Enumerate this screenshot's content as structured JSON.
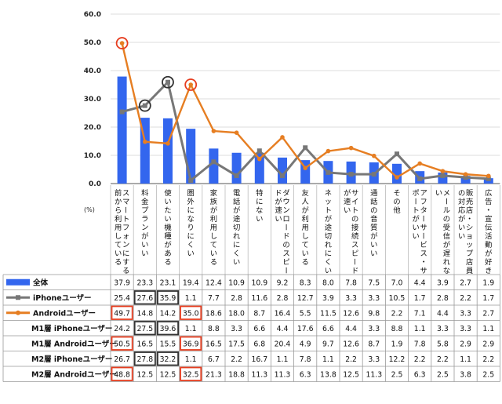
{
  "chart_data": {
    "type": "bar",
    "y_unit": "(%)",
    "ylim": [
      0,
      60
    ],
    "yticks": [
      "0.0",
      "10.0",
      "20.0",
      "30.0",
      "40.0",
      "50.0",
      "60.0"
    ],
    "categories": [
      "スマートフォンにする前から利用している",
      "料金プランがいい",
      "使いたい機種がある",
      "圏外になりにくい",
      "家族が利用している",
      "電話が途切れにくい",
      "特にない",
      "ダウンロードのスピードが速い",
      "友人が利用している",
      "ネットが途切れにくい",
      "サイトの接続スピードが速い",
      "通話の音質がいい",
      "その他",
      "アフターサービス・サポートがいい",
      "メールの受信が遅れない",
      "販売店・ショップ店員の対応がいい",
      "広告・宣伝活動が好き"
    ],
    "series": [
      {
        "name": "全体",
        "style": "bar",
        "color": "#3366ee",
        "values": [
          37.9,
          23.3,
          23.1,
          19.4,
          12.4,
          10.9,
          10.9,
          9.2,
          8.3,
          8.0,
          7.8,
          7.5,
          7.0,
          4.4,
          3.9,
          2.7,
          1.9
        ]
      },
      {
        "name": "iPhoneユーザー",
        "style": "line",
        "color": "#777777",
        "values": [
          25.4,
          27.6,
          35.9,
          1.1,
          7.7,
          2.8,
          11.6,
          2.8,
          12.7,
          3.9,
          3.3,
          3.3,
          10.5,
          1.7,
          2.8,
          2.2,
          1.7
        ]
      },
      {
        "name": "Androidユーザー",
        "style": "line",
        "color": "#e67e22",
        "values": [
          49.7,
          14.8,
          14.2,
          35.0,
          18.6,
          18.0,
          8.7,
          16.4,
          5.5,
          11.5,
          12.6,
          9.8,
          2.2,
          7.1,
          4.4,
          3.3,
          2.7
        ]
      },
      {
        "name": "M1層 iPhoneユーザー",
        "style": "table",
        "values": [
          24.2,
          27.5,
          39.6,
          1.1,
          8.8,
          3.3,
          6.6,
          4.4,
          17.6,
          6.6,
          4.4,
          3.3,
          8.8,
          1.1,
          3.3,
          3.3,
          1.1
        ]
      },
      {
        "name": "M1層 Androidユーザー",
        "style": "table",
        "values": [
          50.5,
          16.5,
          15.5,
          36.9,
          16.5,
          17.5,
          6.8,
          20.4,
          4.9,
          9.7,
          12.6,
          8.7,
          1.9,
          7.8,
          5.8,
          2.9,
          2.9
        ]
      },
      {
        "name": "M2層 iPhoneユーザー",
        "style": "table",
        "values": [
          26.7,
          27.8,
          32.2,
          1.1,
          6.7,
          2.2,
          16.7,
          1.1,
          7.8,
          1.1,
          2.2,
          3.3,
          12.2,
          2.2,
          2.2,
          1.1,
          2.2
        ]
      },
      {
        "name": "M2層 Androidユーザー",
        "style": "table",
        "values": [
          48.8,
          12.5,
          12.5,
          32.5,
          21.3,
          18.8,
          11.3,
          11.3,
          6.3,
          13.8,
          12.5,
          11.3,
          2.5,
          6.3,
          2.5,
          3.8,
          2.5
        ]
      }
    ],
    "circled_points": [
      {
        "series": 1,
        "index": 1,
        "color": "#333333"
      },
      {
        "series": 1,
        "index": 2,
        "color": "#333333"
      },
      {
        "series": 2,
        "index": 0,
        "color": "#e63c1e"
      },
      {
        "series": 2,
        "index": 3,
        "color": "#e63c1e"
      }
    ],
    "boxed_cells": [
      {
        "series": 1,
        "index": 1,
        "color": "#333333"
      },
      {
        "series": 1,
        "index": 2,
        "color": "#333333"
      },
      {
        "series": 2,
        "index": 0,
        "color": "#e63c1e"
      },
      {
        "series": 2,
        "index": 3,
        "color": "#e63c1e"
      },
      {
        "series": 3,
        "index": 1,
        "color": "#333333"
      },
      {
        "series": 3,
        "index": 2,
        "color": "#333333"
      },
      {
        "series": 4,
        "index": 0,
        "color": "#e63c1e"
      },
      {
        "series": 4,
        "index": 3,
        "color": "#e63c1e"
      },
      {
        "series": 5,
        "index": 1,
        "color": "#333333"
      },
      {
        "series": 5,
        "index": 2,
        "color": "#333333"
      },
      {
        "series": 6,
        "index": 0,
        "color": "#e63c1e"
      },
      {
        "series": 6,
        "index": 3,
        "color": "#e63c1e"
      }
    ]
  }
}
